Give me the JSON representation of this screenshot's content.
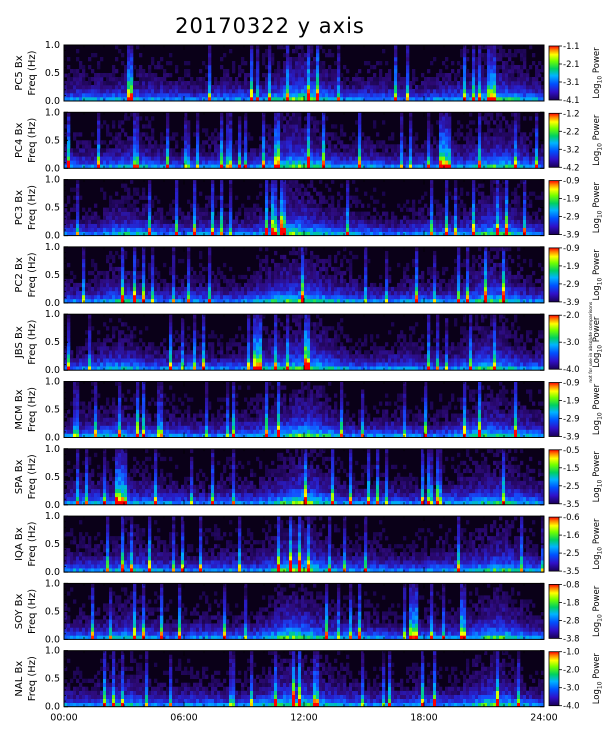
{
  "title": "20170322 y axis",
  "colorbar_title_prefix": "Log",
  "colorbar_title_subscript": "10",
  "colorbar_title_suffix": " Power",
  "chart_data": {
    "type": "heatmap",
    "title": "20170322 y axis",
    "xlabel": "",
    "x_ticks": [
      "00:00",
      "06:00",
      "12:00",
      "18:00",
      "24:00"
    ],
    "xlim_hours": [
      0,
      24
    ],
    "ylim_hz": [
      0,
      1.0
    ],
    "y_ticks": [
      "0.0",
      "0.5",
      "1.0"
    ],
    "colormap": "rainbow (purple-blue-green-yellow-red)",
    "panels": [
      {
        "station": "PC5 Bx",
        "ylabel": "Freq (Hz)",
        "cb_ticks": [
          "-1.1",
          "-2.1",
          "-3.1",
          "-4.1"
        ],
        "note": ""
      },
      {
        "station": "PC4 Bx",
        "ylabel": "Freq (Hz)",
        "cb_ticks": [
          "-1.2",
          "-2.2",
          "-3.2",
          "-4.2"
        ],
        "note": ""
      },
      {
        "station": "PC3 Bx",
        "ylabel": "Freq (Hz)",
        "cb_ticks": [
          "-0.9",
          "-1.9",
          "-2.9",
          "-3.9"
        ],
        "note": ""
      },
      {
        "station": "PC2 Bx",
        "ylabel": "Freq (Hz)",
        "cb_ticks": [
          "-0.9",
          "-1.9",
          "-2.9",
          "-3.9"
        ],
        "note": ""
      },
      {
        "station": "JBS Bx",
        "ylabel": "Freq (Hz)",
        "cb_ticks": [
          "-2.0",
          "-3.0",
          "-4.0"
        ],
        "note": "not for use in absolute comparisons"
      },
      {
        "station": "MCM Bx",
        "ylabel": "Freq (Hz)",
        "cb_ticks": [
          "-0.9",
          "-1.9",
          "-2.9",
          "-3.9"
        ],
        "note": ""
      },
      {
        "station": "SPA Bx",
        "ylabel": "Freq (Hz)",
        "cb_ticks": [
          "-0.5",
          "-1.5",
          "-2.5",
          "-3.5"
        ],
        "note": ""
      },
      {
        "station": "IQA Bx",
        "ylabel": "Freq (Hz)",
        "cb_ticks": [
          "-0.6",
          "-1.6",
          "-2.5",
          "-3.5"
        ],
        "note": ""
      },
      {
        "station": "SOY Bx",
        "ylabel": "Freq (Hz)",
        "cb_ticks": [
          "-0.8",
          "-1.8",
          "-2.8",
          "-3.8"
        ],
        "note": ""
      },
      {
        "station": "NAL Bx",
        "ylabel": "Freq (Hz)",
        "cb_ticks": [
          "-1.0",
          "-2.0",
          "-3.0",
          "-4.0"
        ],
        "note": ""
      }
    ]
  }
}
